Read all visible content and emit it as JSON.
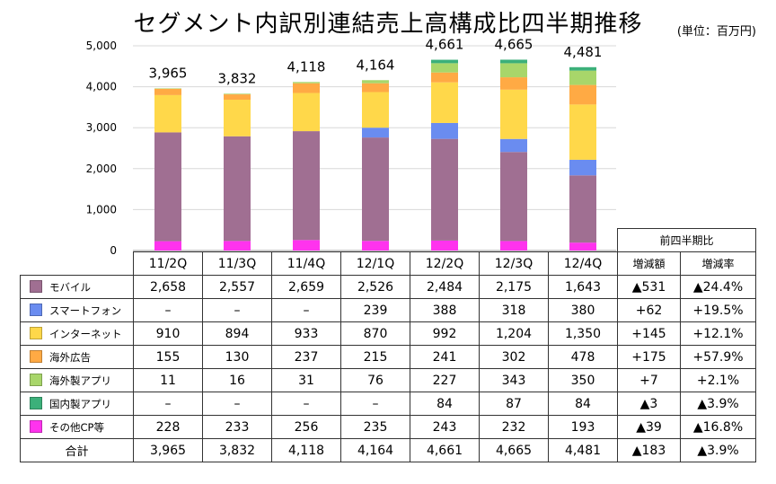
{
  "title": "セグメント内訳別連結売上高構成比四半期推移",
  "unit": "(単位：百万円)",
  "chart_data": {
    "type": "bar",
    "stacked": true,
    "categories": [
      "11/2Q",
      "11/3Q",
      "11/4Q",
      "12/1Q",
      "12/2Q",
      "12/3Q",
      "12/4Q"
    ],
    "ylim": [
      0,
      5000
    ],
    "yticks": [
      "0",
      "1,000",
      "2,000",
      "3,000",
      "4,000",
      "5,000"
    ],
    "grid": true,
    "totals": [
      "3,965",
      "3,832",
      "4,118",
      "4,164",
      "4,661",
      "4,665",
      "4,481"
    ],
    "series": [
      {
        "name": "その他CP等",
        "color": "#ff33ee",
        "values": [
          228,
          233,
          256,
          235,
          243,
          232,
          193
        ]
      },
      {
        "name": "モバイル",
        "color": "#a06f92",
        "values": [
          2658,
          2557,
          2659,
          2526,
          2484,
          2175,
          1643
        ]
      },
      {
        "name": "スマートフォン",
        "color": "#6a8cf0",
        "values": [
          0,
          0,
          0,
          239,
          388,
          318,
          380
        ]
      },
      {
        "name": "インターネット",
        "color": "#ffd84a",
        "values": [
          910,
          894,
          933,
          870,
          992,
          1204,
          1350
        ]
      },
      {
        "name": "海外広告",
        "color": "#ffaa44",
        "values": [
          155,
          130,
          237,
          215,
          241,
          302,
          478
        ]
      },
      {
        "name": "海外製アプリ",
        "color": "#a8d66a",
        "values": [
          11,
          16,
          31,
          76,
          227,
          343,
          350
        ]
      },
      {
        "name": "国内製アプリ",
        "color": "#3cb07a",
        "values": [
          0,
          0,
          0,
          0,
          84,
          87,
          84
        ]
      }
    ]
  },
  "table": {
    "comparison_header": "前四半期比",
    "col_headers": [
      "増減額",
      "増減率"
    ],
    "rows": [
      {
        "label": "モバイル",
        "color": "#a06f92",
        "cells": [
          "2,658",
          "2,557",
          "2,659",
          "2,526",
          "2,484",
          "2,175",
          "1,643",
          "▲531",
          "▲24.4%"
        ]
      },
      {
        "label": "スマートフォン",
        "color": "#6a8cf0",
        "cells": [
          "–",
          "–",
          "–",
          "239",
          "388",
          "318",
          "380",
          "+62",
          "+19.5%"
        ]
      },
      {
        "label": "インターネット",
        "color": "#ffd84a",
        "cells": [
          "910",
          "894",
          "933",
          "870",
          "992",
          "1,204",
          "1,350",
          "+145",
          "+12.1%"
        ]
      },
      {
        "label": "海外広告",
        "color": "#ffaa44",
        "cells": [
          "155",
          "130",
          "237",
          "215",
          "241",
          "302",
          "478",
          "+175",
          "+57.9%"
        ]
      },
      {
        "label": "海外製アプリ",
        "color": "#a8d66a",
        "cells": [
          "11",
          "16",
          "31",
          "76",
          "227",
          "343",
          "350",
          "+7",
          "+2.1%"
        ]
      },
      {
        "label": "国内製アプリ",
        "color": "#3cb07a",
        "cells": [
          "–",
          "–",
          "–",
          "–",
          "84",
          "87",
          "84",
          "▲3",
          "▲3.9%"
        ]
      },
      {
        "label": "その他CP等",
        "color": "#ff33ee",
        "cells": [
          "228",
          "233",
          "256",
          "235",
          "243",
          "232",
          "193",
          "▲39",
          "▲16.8%"
        ]
      },
      {
        "label": "合計",
        "color": "",
        "cells": [
          "3,965",
          "3,832",
          "4,118",
          "4,164",
          "4,661",
          "4,665",
          "4,481",
          "▲183",
          "▲3.9%"
        ]
      }
    ]
  }
}
